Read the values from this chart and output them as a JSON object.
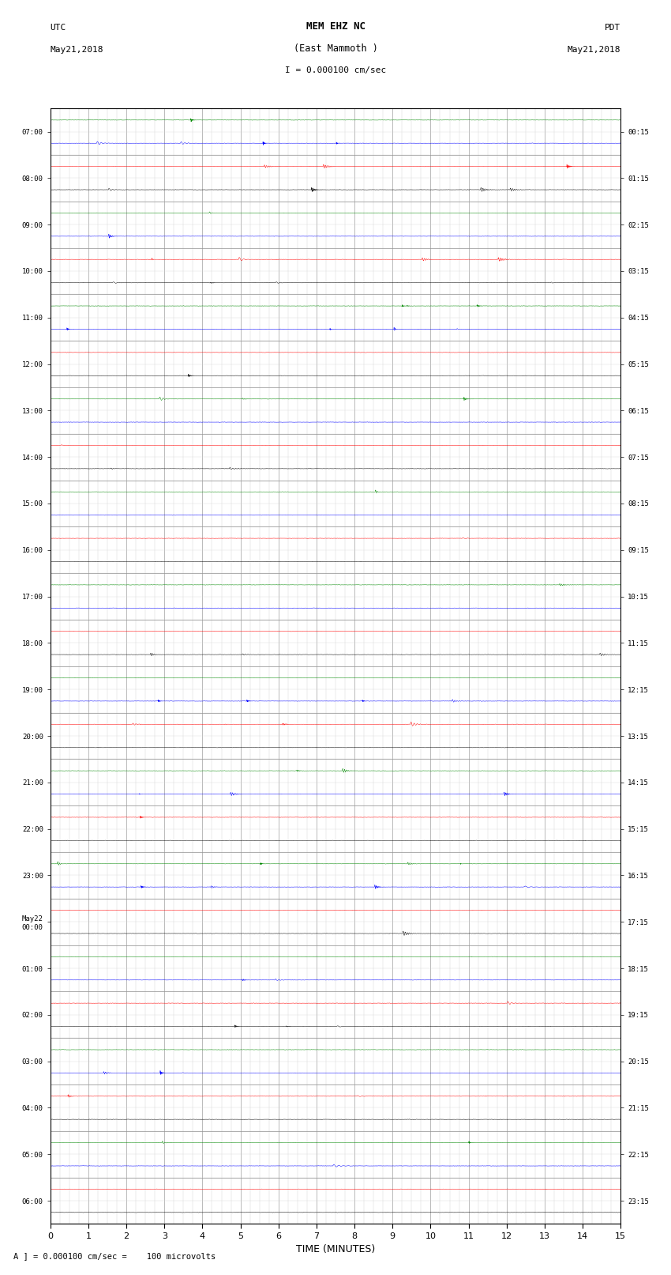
{
  "title_line1": "MEM EHZ NC",
  "title_line2": "(East Mammoth )",
  "scale_label": "I = 0.000100 cm/sec",
  "footer_label": "A ] = 0.000100 cm/sec =    100 microvolts",
  "xlabel": "TIME (MINUTES)",
  "left_times": [
    "07:00",
    "08:00",
    "09:00",
    "10:00",
    "11:00",
    "12:00",
    "13:00",
    "14:00",
    "15:00",
    "16:00",
    "17:00",
    "18:00",
    "19:00",
    "20:00",
    "21:00",
    "22:00",
    "23:00",
    "May22\n00:00",
    "01:00",
    "02:00",
    "03:00",
    "04:00",
    "05:00",
    "06:00"
  ],
  "right_times": [
    "00:15",
    "01:15",
    "02:15",
    "03:15",
    "04:15",
    "05:15",
    "06:15",
    "07:15",
    "08:15",
    "09:15",
    "10:15",
    "11:15",
    "12:15",
    "13:15",
    "14:15",
    "15:15",
    "16:15",
    "17:15",
    "18:15",
    "19:15",
    "20:15",
    "21:15",
    "22:15",
    "23:15"
  ],
  "n_rows": 24,
  "bg_color": "#ffffff",
  "grid_color": "#aaaaaa",
  "trace_colors": [
    "#000000",
    "#ff0000",
    "#008800",
    "#0000ff"
  ],
  "time_minutes": 15
}
